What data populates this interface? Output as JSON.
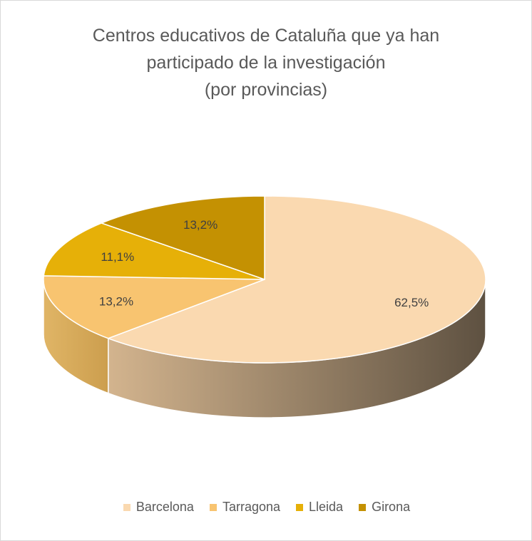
{
  "chart_data": {
    "type": "pie",
    "style": "3d",
    "title": [
      "Centros educativos de Cataluña que ya han",
      "participado de la investigación",
      "(por provincias)"
    ],
    "categories": [
      "Barcelona",
      "Tarragona",
      "Lleida",
      "Girona"
    ],
    "values": [
      62.5,
      13.2,
      11.1,
      13.2
    ],
    "labels": [
      "62,5%",
      "13,2%",
      "11,1%",
      "13,2%"
    ],
    "colors": [
      "#FAD9B0",
      "#F8C470",
      "#E6B008",
      "#C49102"
    ],
    "legend_position": "bottom"
  }
}
